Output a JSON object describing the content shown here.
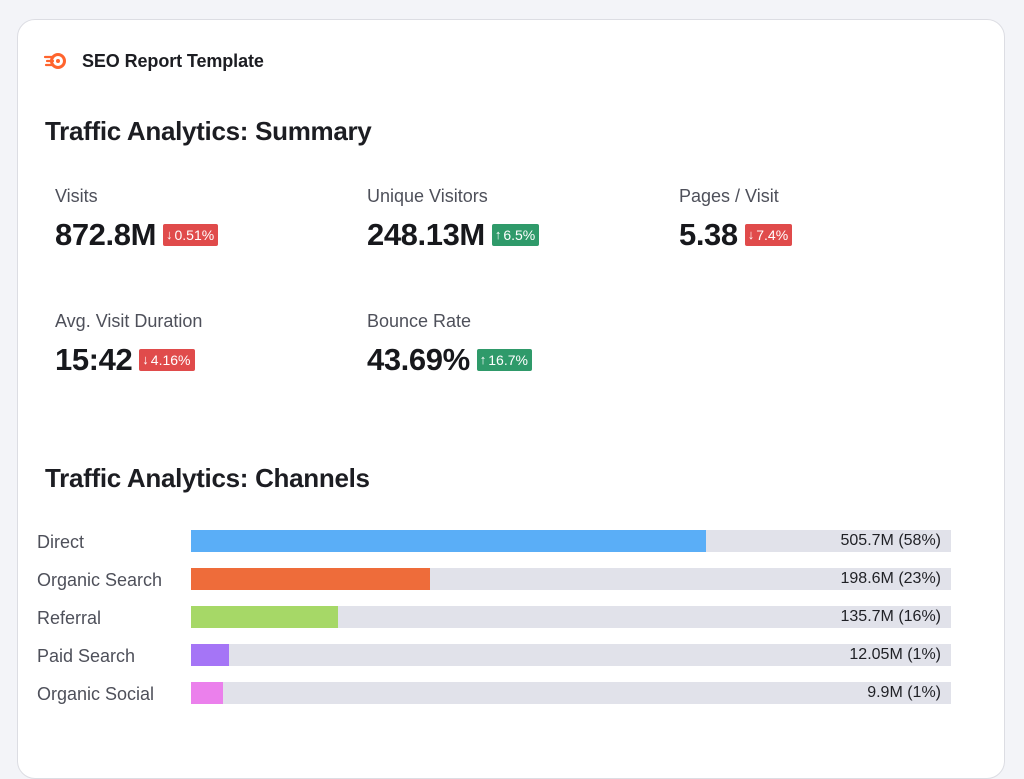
{
  "header": {
    "title": "SEO Report Template",
    "logo_icon": "semrush-flame-logo",
    "logo_color": "#ff642d"
  },
  "summary": {
    "title": "Traffic Analytics: Summary",
    "metrics": [
      {
        "label": "Visits",
        "value": "872.8M",
        "change": "0.51%",
        "direction": "down"
      },
      {
        "label": "Unique Visitors",
        "value": "248.13M",
        "change": "6.5%",
        "direction": "up"
      },
      {
        "label": "Pages / Visit",
        "value": "5.38",
        "change": "7.4%",
        "direction": "down"
      },
      {
        "label": "Avg. Visit Duration",
        "value": "15:42",
        "change": "4.16%",
        "direction": "down"
      },
      {
        "label": "Bounce Rate",
        "value": "43.69%",
        "change": "16.7%",
        "direction": "up"
      }
    ],
    "colors": {
      "down": "#e04b4b",
      "up": "#2f9a6a"
    }
  },
  "channels": {
    "title": "Traffic Analytics: Channels",
    "items": [
      {
        "label": "Direct",
        "value_text": "505.7M (58%)",
        "share": 0.678,
        "color": "#5aaef7"
      },
      {
        "label": "Organic Search",
        "value_text": "198.6M (23%)",
        "share": 0.315,
        "color": "#ee6c3a"
      },
      {
        "label": "Referral",
        "value_text": "135.7M (16%)",
        "share": 0.194,
        "color": "#a6d867"
      },
      {
        "label": "Paid Search",
        "value_text": "12.05M (1%)",
        "share": 0.05,
        "color": "#a575f6"
      },
      {
        "label": "Organic Social",
        "value_text": "9.9M (1%)",
        "share": 0.042,
        "color": "#eb80ec"
      }
    ]
  }
}
